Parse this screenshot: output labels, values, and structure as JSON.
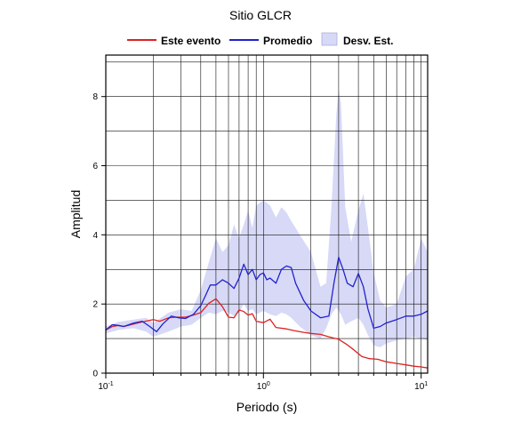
{
  "chart_data": {
    "type": "line",
    "title": "Sitio GLCR",
    "xlabel": "Periodo (s)",
    "ylabel": "Amplitud",
    "x_scale": "log",
    "xlim": [
      0.1,
      11
    ],
    "ylim": [
      0,
      9.2
    ],
    "grid": true,
    "legend_position": "top",
    "x_tick_labels": [
      {
        "x": 0.1,
        "base": "10",
        "exp": "-1"
      },
      {
        "x": 1,
        "base": "10",
        "exp": "0"
      },
      {
        "x": 10,
        "base": "10",
        "exp": "1"
      }
    ],
    "y_ticks": [
      0,
      2,
      4,
      6,
      8
    ],
    "colors": {
      "event": "#dd2222",
      "mean": "#2222cc",
      "band": "#d7d9f7"
    },
    "legend": [
      {
        "label": "Este evento",
        "kind": "line",
        "color": "#dd2222"
      },
      {
        "label": "Promedio",
        "kind": "line",
        "color": "#2222cc"
      },
      {
        "label": "Desv. Est.",
        "kind": "box",
        "color": "#d7d9f7"
      }
    ],
    "series": [
      {
        "name": "Este evento",
        "x": [
          0.1,
          0.11,
          0.12,
          0.13,
          0.15,
          0.17,
          0.2,
          0.22,
          0.25,
          0.28,
          0.32,
          0.36,
          0.4,
          0.45,
          0.5,
          0.55,
          0.6,
          0.65,
          0.7,
          0.75,
          0.8,
          0.85,
          0.9,
          1.0,
          1.1,
          1.2,
          1.4,
          1.6,
          1.8,
          2.0,
          2.3,
          2.6,
          3.0,
          3.4,
          3.8,
          4.2,
          4.7,
          5.3,
          6.0,
          7.0,
          8.0,
          9.0,
          10.0,
          11.0
        ],
        "y": [
          1.25,
          1.35,
          1.38,
          1.35,
          1.42,
          1.48,
          1.55,
          1.5,
          1.6,
          1.62,
          1.62,
          1.68,
          1.75,
          2.02,
          2.15,
          1.92,
          1.62,
          1.6,
          1.83,
          1.78,
          1.68,
          1.72,
          1.5,
          1.46,
          1.56,
          1.32,
          1.28,
          1.22,
          1.18,
          1.15,
          1.12,
          1.05,
          0.98,
          0.82,
          0.65,
          0.48,
          0.42,
          0.4,
          0.33,
          0.28,
          0.24,
          0.2,
          0.18,
          0.15
        ]
      },
      {
        "name": "Promedio",
        "x": [
          0.1,
          0.11,
          0.12,
          0.13,
          0.15,
          0.17,
          0.19,
          0.21,
          0.23,
          0.26,
          0.29,
          0.32,
          0.36,
          0.4,
          0.43,
          0.46,
          0.5,
          0.55,
          0.6,
          0.65,
          0.7,
          0.75,
          0.8,
          0.85,
          0.9,
          0.95,
          1.0,
          1.05,
          1.1,
          1.2,
          1.3,
          1.4,
          1.5,
          1.6,
          1.8,
          2.0,
          2.3,
          2.6,
          2.8,
          3.0,
          3.2,
          3.4,
          3.7,
          4.0,
          4.3,
          4.6,
          5.0,
          5.5,
          6.0,
          7.0,
          8.0,
          9.0,
          10.0,
          11.0
        ],
        "y": [
          1.25,
          1.4,
          1.38,
          1.35,
          1.45,
          1.5,
          1.35,
          1.2,
          1.42,
          1.65,
          1.6,
          1.58,
          1.7,
          1.95,
          2.25,
          2.55,
          2.55,
          2.7,
          2.6,
          2.45,
          2.75,
          3.15,
          2.85,
          3.0,
          2.7,
          2.85,
          2.9,
          2.7,
          2.75,
          2.6,
          3.0,
          3.1,
          3.05,
          2.6,
          2.1,
          1.8,
          1.6,
          1.65,
          2.6,
          3.35,
          3.0,
          2.6,
          2.5,
          2.88,
          2.5,
          1.85,
          1.3,
          1.35,
          1.45,
          1.55,
          1.65,
          1.65,
          1.7,
          1.8
        ]
      }
    ],
    "std_band": {
      "name": "Desv. Est.",
      "x": [
        0.1,
        0.12,
        0.15,
        0.18,
        0.2,
        0.25,
        0.3,
        0.35,
        0.4,
        0.45,
        0.5,
        0.55,
        0.6,
        0.65,
        0.7,
        0.75,
        0.8,
        0.85,
        0.9,
        1.0,
        1.1,
        1.2,
        1.3,
        1.4,
        1.5,
        1.7,
        2.0,
        2.3,
        2.5,
        2.7,
        2.9,
        3.0,
        3.1,
        3.3,
        3.6,
        4.0,
        4.3,
        4.6,
        5.0,
        5.5,
        6.0,
        7.0,
        8.0,
        9.0,
        10.0,
        11.0
      ],
      "upper": [
        1.35,
        1.48,
        1.55,
        1.6,
        1.45,
        1.75,
        1.85,
        1.8,
        2.4,
        3.2,
        3.9,
        3.5,
        3.7,
        4.3,
        3.9,
        4.3,
        4.7,
        4.2,
        4.85,
        5.0,
        4.85,
        4.5,
        4.8,
        4.65,
        4.4,
        4.0,
        3.5,
        2.5,
        2.6,
        4.8,
        7.5,
        8.2,
        7.8,
        4.8,
        3.8,
        4.7,
        5.2,
        4.2,
        2.9,
        2.1,
        1.9,
        2.0,
        2.8,
        3.0,
        3.9,
        3.5
      ],
      "lower": [
        1.15,
        1.25,
        1.3,
        1.2,
        1.05,
        1.2,
        1.35,
        1.4,
        1.6,
        1.75,
        1.7,
        1.8,
        1.75,
        1.65,
        1.75,
        2.0,
        1.8,
        1.85,
        1.7,
        1.8,
        1.7,
        1.65,
        1.75,
        1.7,
        1.6,
        1.35,
        1.1,
        1.0,
        1.3,
        1.7,
        1.9,
        1.8,
        1.7,
        1.4,
        1.5,
        1.6,
        1.4,
        1.1,
        0.8,
        0.75,
        0.85,
        0.95,
        1.0,
        1.05,
        1.0,
        0.95
      ]
    }
  }
}
